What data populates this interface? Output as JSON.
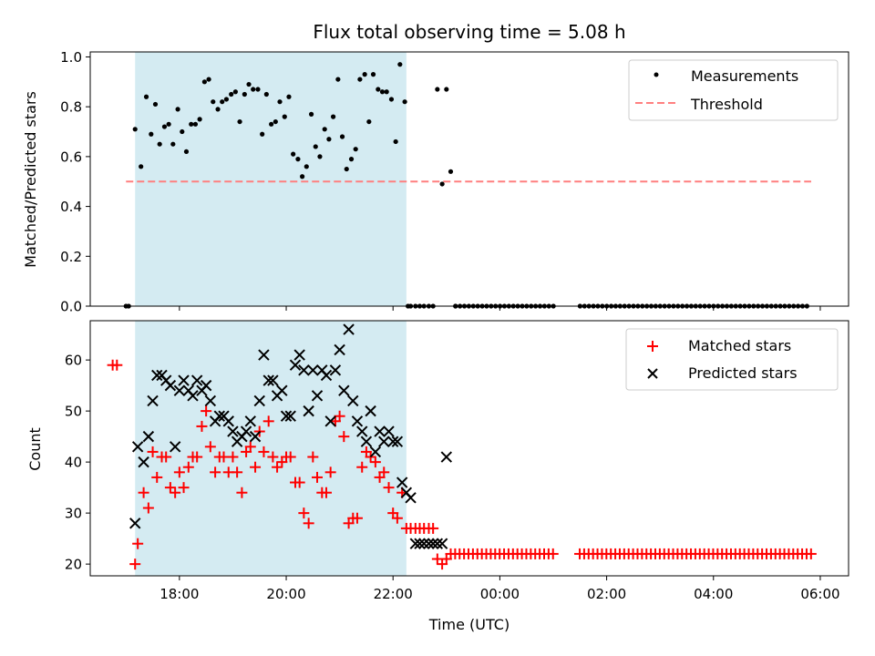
{
  "title": "Flux total observing time = 5.08 h",
  "colors": {
    "window": "#d4ebf2",
    "measurement": "#000000",
    "threshold": "#ff7f7f",
    "matched": "#ff0000",
    "predicted": "#000000"
  },
  "chart_data": [
    {
      "type": "scatter",
      "xlabel": "",
      "ylabel": "Matched/Predicted stars",
      "xlim": [
        16.33,
        30.53
      ],
      "ylim": [
        0,
        1.02
      ],
      "yticks": [
        0,
        0.2,
        0.4,
        0.6,
        0.8,
        1.0
      ],
      "ytick_labels": [
        "0.0",
        "0.2",
        "0.4",
        "0.6",
        "0.8",
        "1.0"
      ],
      "shaded_x": [
        17.17,
        22.25
      ],
      "threshold": {
        "name": "Threshold",
        "y": 0.5,
        "x": [
          17.0,
          29.83
        ]
      },
      "legend": [
        "Measurements",
        "Threshold"
      ],
      "series": [
        {
          "name": "Measurements",
          "marker": "dot",
          "x": [
            17.0,
            17.05,
            17.17,
            17.28,
            17.38,
            17.47,
            17.55,
            17.63,
            17.72,
            17.8,
            17.88,
            17.97,
            18.05,
            18.13,
            18.22,
            18.3,
            18.38,
            18.47,
            18.55,
            18.63,
            18.72,
            18.8,
            18.88,
            18.97,
            19.05,
            19.13,
            19.22,
            19.3,
            19.38,
            19.47,
            19.55,
            19.63,
            19.72,
            19.8,
            19.88,
            19.97,
            20.05,
            20.13,
            20.22,
            20.3,
            20.38,
            20.47,
            20.55,
            20.63,
            20.72,
            20.8,
            20.88,
            20.97,
            21.05,
            21.13,
            21.22,
            21.3,
            21.38,
            21.47,
            21.55,
            21.63,
            21.72,
            21.8,
            21.88,
            21.97,
            22.05,
            22.13,
            22.22,
            22.28,
            22.33,
            22.42,
            22.5,
            22.58,
            22.67,
            22.75,
            22.83,
            22.92,
            23.0,
            23.08,
            23.17
          ],
          "y": [
            0,
            0,
            0.71,
            0.56,
            0.84,
            0.69,
            0.81,
            0.65,
            0.72,
            0.73,
            0.65,
            0.79,
            0.7,
            0.62,
            0.73,
            0.73,
            0.75,
            0.9,
            0.91,
            0.82,
            0.79,
            0.82,
            0.83,
            0.85,
            0.86,
            0.74,
            0.85,
            0.89,
            0.87,
            0.87,
            0.69,
            0.85,
            0.73,
            0.74,
            0.82,
            0.76,
            0.84,
            0.61,
            0.59,
            0.52,
            0.56,
            0.77,
            0.64,
            0.6,
            0.71,
            0.67,
            0.76,
            0.91,
            0.68,
            0.55,
            0.59,
            0.63,
            0.91,
            0.93,
            0.74,
            0.93,
            0.87,
            0.86,
            0.86,
            0.83,
            0.66,
            0.97,
            0.82,
            0,
            0,
            0,
            0,
            0,
            0,
            0,
            0.87,
            0.49,
            0.87,
            0.54,
            0
          ]
        },
        {
          "name": "Measurements (zero run)",
          "marker": "dot",
          "x_range": [
            23.17,
            29.83
          ],
          "step": 0.0833,
          "y": 0,
          "gaps": [
            [
              25.05,
              25.45
            ]
          ]
        }
      ]
    },
    {
      "type": "scatter",
      "xlabel": "Time (UTC)",
      "ylabel": "Count",
      "xlim": [
        16.33,
        30.53
      ],
      "ylim": [
        17.7,
        67.7
      ],
      "yticks": [
        20,
        30,
        40,
        50,
        60
      ],
      "ytick_labels": [
        "20",
        "30",
        "40",
        "50",
        "60"
      ],
      "xticks": [
        18,
        20,
        22,
        24,
        26,
        28,
        30
      ],
      "xtick_labels": [
        "18:00",
        "20:00",
        "22:00",
        "00:00",
        "02:00",
        "04:00",
        "06:00"
      ],
      "shaded_x": [
        17.17,
        22.25
      ],
      "legend": [
        "Matched stars",
        "Predicted stars"
      ],
      "series": [
        {
          "name": "Matched stars",
          "marker": "plus",
          "x": [
            16.75,
            16.83,
            17.17,
            17.22,
            17.33,
            17.42,
            17.5,
            17.58,
            17.67,
            17.75,
            17.83,
            17.92,
            18.0,
            18.08,
            18.17,
            18.25,
            18.33,
            18.42,
            18.5,
            18.58,
            18.67,
            18.75,
            18.83,
            18.92,
            19.0,
            19.08,
            19.17,
            19.25,
            19.33,
            19.42,
            19.5,
            19.58,
            19.67,
            19.75,
            19.83,
            19.92,
            20.0,
            20.08,
            20.17,
            20.25,
            20.33,
            20.42,
            20.5,
            20.58,
            20.67,
            20.75,
            20.83,
            20.92,
            21.0,
            21.08,
            21.17,
            21.25,
            21.33,
            21.42,
            21.5,
            21.58,
            21.67,
            21.75,
            21.83,
            21.92,
            22.0,
            22.08,
            22.17,
            22.25,
            22.33,
            22.42,
            22.5,
            22.58,
            22.67,
            22.75,
            22.83,
            22.92,
            23.0
          ],
          "y": [
            59,
            59,
            20,
            24,
            34,
            31,
            42,
            37,
            41,
            41,
            35,
            34,
            38,
            35,
            39,
            41,
            41,
            47,
            50,
            43,
            38,
            41,
            41,
            38,
            41,
            38,
            34,
            42,
            43,
            39,
            46,
            42,
            48,
            41,
            39,
            40,
            41,
            41,
            36,
            36,
            30,
            28,
            41,
            37,
            34,
            34,
            38,
            48,
            49,
            45,
            28,
            29,
            29,
            39,
            42,
            41,
            40,
            37,
            38,
            35,
            30,
            29,
            34,
            27,
            27,
            27,
            27,
            27,
            27,
            27,
            21,
            20,
            21
          ]
        },
        {
          "name": "Matched stars (flat run)",
          "marker": "plus",
          "x_range": [
            23.08,
            29.83
          ],
          "step": 0.0833,
          "y": 22,
          "gaps": [
            [
              25.05,
              25.45
            ]
          ]
        },
        {
          "name": "Predicted stars",
          "marker": "x",
          "x": [
            17.17,
            17.22,
            17.33,
            17.42,
            17.5,
            17.58,
            17.67,
            17.75,
            17.83,
            17.92,
            18.0,
            18.08,
            18.17,
            18.25,
            18.33,
            18.42,
            18.5,
            18.58,
            18.67,
            18.75,
            18.83,
            18.92,
            19.0,
            19.08,
            19.17,
            19.25,
            19.33,
            19.42,
            19.5,
            19.58,
            19.67,
            19.75,
            19.83,
            19.92,
            20.0,
            20.08,
            20.17,
            20.25,
            20.33,
            20.42,
            20.5,
            20.58,
            20.67,
            20.75,
            20.83,
            20.92,
            21.0,
            21.08,
            21.17,
            21.25,
            21.33,
            21.42,
            21.5,
            21.58,
            21.67,
            21.75,
            21.83,
            21.92,
            22.0,
            22.08,
            22.17,
            22.25,
            22.33,
            22.42,
            22.5,
            22.58,
            22.67,
            22.75,
            22.83,
            22.92,
            23.0
          ],
          "y": [
            28,
            43,
            40,
            45,
            52,
            57,
            57,
            56,
            55,
            43,
            54,
            56,
            54,
            53,
            56,
            54,
            55,
            52,
            48,
            49,
            49,
            48,
            46,
            44,
            45,
            46,
            48,
            45,
            52,
            61,
            56,
            56,
            53,
            54,
            49,
            49,
            59,
            61,
            58,
            50,
            58,
            53,
            58,
            57,
            48,
            58,
            62,
            54,
            66,
            52,
            48,
            46,
            44,
            50,
            42,
            46,
            44,
            46,
            44,
            44,
            36,
            34,
            33,
            24,
            24,
            24,
            24,
            24,
            24,
            24,
            41
          ]
        }
      ]
    }
  ]
}
